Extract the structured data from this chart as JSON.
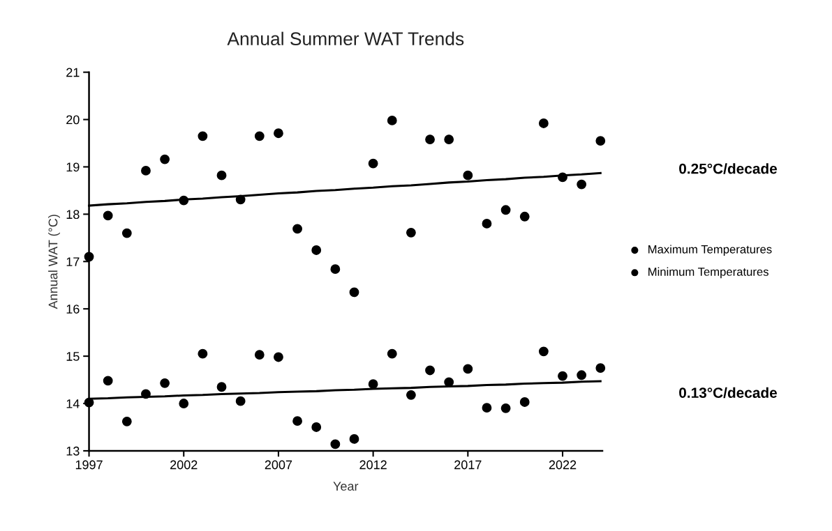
{
  "chart_data": {
    "type": "scatter",
    "title": "Annual Summer WAT Trends",
    "xlabel": "Year",
    "ylabel": "Annual WAT (°C)",
    "x": [
      1997,
      1998,
      1999,
      2000,
      2001,
      2002,
      2003,
      2004,
      2005,
      2006,
      2007,
      2008,
      2009,
      2010,
      2011,
      2012,
      2013,
      2014,
      2015,
      2016,
      2017,
      2018,
      2019,
      2020,
      2021,
      2022,
      2023,
      2024
    ],
    "series": [
      {
        "name": "Maximum Temperatures",
        "color": "#000000",
        "values": [
          17.1,
          17.97,
          17.6,
          18.92,
          19.16,
          18.29,
          19.65,
          18.82,
          18.31,
          19.65,
          19.71,
          17.69,
          17.24,
          16.84,
          16.35,
          19.07,
          19.98,
          17.61,
          19.58,
          19.58,
          18.82,
          17.8,
          18.09,
          17.95,
          19.92,
          18.78,
          18.63,
          19.55
        ]
      },
      {
        "name": "Minimum Temperatures",
        "color": "#000000",
        "values": [
          14.02,
          14.48,
          13.62,
          14.2,
          14.43,
          14.0,
          15.05,
          14.35,
          14.05,
          15.03,
          14.98,
          13.63,
          13.5,
          13.14,
          13.25,
          14.41,
          15.05,
          14.18,
          14.7,
          14.45,
          14.73,
          13.91,
          13.9,
          14.03,
          15.1,
          14.58,
          14.6,
          14.75
        ]
      },
      {
        "type": "line",
        "marker": "none",
        "color": "#000000",
        "values": [
          18.18,
          18.21,
          18.23,
          18.26,
          18.28,
          18.31,
          18.33,
          18.36,
          18.38,
          18.41,
          18.44,
          18.46,
          18.49,
          18.51,
          18.54,
          18.56,
          18.59,
          18.61,
          18.64,
          18.67,
          18.69,
          18.72,
          18.74,
          18.77,
          18.79,
          18.82,
          18.84,
          18.87
        ]
      },
      {
        "type": "line",
        "marker": "none",
        "color": "#000000",
        "values": [
          14.1,
          14.11,
          14.13,
          14.14,
          14.15,
          14.17,
          14.18,
          14.2,
          14.21,
          14.22,
          14.24,
          14.25,
          14.26,
          14.28,
          14.29,
          14.31,
          14.32,
          14.33,
          14.35,
          14.36,
          14.37,
          14.39,
          14.4,
          14.42,
          14.43,
          14.44,
          14.46,
          14.47
        ]
      }
    ],
    "xlim": [
      1997,
      2024.1
    ],
    "xticks": [
      1997,
      2002,
      2007,
      2012,
      2017,
      2022
    ],
    "ylim": [
      13,
      21
    ],
    "yticks": [
      13,
      14,
      15,
      16,
      17,
      18,
      19,
      20,
      21
    ],
    "marker": "circle",
    "legend": "right",
    "grid": false,
    "annotations": [
      "0.25°C/decade",
      "0.13°C/decade"
    ]
  }
}
